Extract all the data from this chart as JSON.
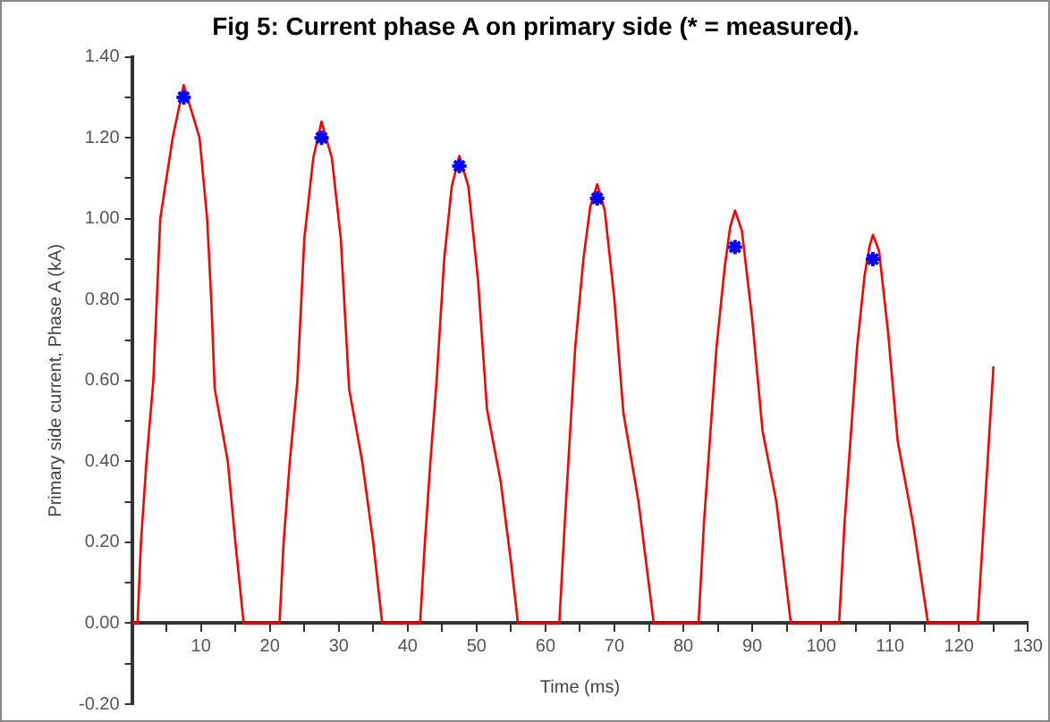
{
  "chart_data": {
    "type": "line",
    "title": "Fig 5: Current phase A on primary side (* = measured).",
    "xlabel": "Time (ms)",
    "ylabel": "Primary side current, Phase A (kA)",
    "xlim": [
      0,
      130
    ],
    "ylim": [
      -0.2,
      1.4
    ],
    "xticks": [
      {
        "value": 5,
        "label": null
      },
      10,
      {
        "value": 15,
        "label": null
      },
      20,
      {
        "value": 25,
        "label": null
      },
      30,
      {
        "value": 35,
        "label": null
      },
      40,
      {
        "value": 45,
        "label": null
      },
      50,
      {
        "value": 55,
        "label": null
      },
      60,
      {
        "value": 65,
        "label": null
      },
      70,
      {
        "value": 75,
        "label": null
      },
      80,
      {
        "value": 85,
        "label": null
      },
      90,
      {
        "value": 95,
        "label": null
      },
      100,
      {
        "value": 105,
        "label": null
      },
      110,
      {
        "value": 115,
        "label": null
      },
      120,
      {
        "value": 125,
        "label": null
      },
      130
    ],
    "yticks": [
      {
        "value": -0.2,
        "label": "-0.20"
      },
      {
        "value": -0.1,
        "label": null
      },
      {
        "value": 0,
        "label": "0.00"
      },
      {
        "value": 0.1,
        "label": null
      },
      {
        "value": 0.2,
        "label": "0.20"
      },
      {
        "value": 0.3,
        "label": null
      },
      {
        "value": 0.4,
        "label": "0.40"
      },
      {
        "value": 0.5,
        "label": null
      },
      {
        "value": 0.6,
        "label": "0.60"
      },
      {
        "value": 0.7,
        "label": null
      },
      {
        "value": 0.8,
        "label": "0.80"
      },
      {
        "value": 0.9,
        "label": null
      },
      {
        "value": 1.0,
        "label": "1.00"
      },
      {
        "value": 1.1,
        "label": null
      },
      {
        "value": 1.2,
        "label": "1.20"
      },
      {
        "value": 1.3,
        "label": null
      },
      {
        "value": 1.4,
        "label": "1.40"
      }
    ],
    "grid": false,
    "legend": false,
    "series": [
      {
        "color": "#ff0000",
        "marker": "none",
        "line_style": "solid",
        "x": [
          0,
          0.8,
          1.3,
          2.1,
          3.1,
          4.1,
          5.9,
          7.5,
          9.8,
          10.9,
          11.5,
          12.0,
          13.9,
          15,
          16.2,
          21.4,
          22.0,
          22.9,
          24,
          25,
          26.3,
          27.5,
          29,
          30.3,
          31.5,
          33.4,
          35,
          36.3,
          41.8,
          42.5,
          43.3,
          44.2,
          45.3,
          46.4,
          47.5,
          48.8,
          50.2,
          51.5,
          53.5,
          55,
          56,
          62,
          62.8,
          64.3,
          65.5,
          66.5,
          67.5,
          68.6,
          70,
          71.3,
          73.5,
          75.7,
          82.2,
          83,
          84.8,
          86,
          86.8,
          87.5,
          88.5,
          90,
          91.5,
          93.5,
          95.6,
          102.6,
          103.4,
          105.2,
          106.3,
          107,
          107.5,
          108.4,
          109.7,
          111.1,
          113.3,
          115.5,
          122.7,
          125
        ],
        "values": [
          0,
          0,
          0.2,
          0.4,
          0.6,
          1.0,
          1.2,
          1.33,
          1.2,
          1.0,
          0.8,
          0.58,
          0.4,
          0.2,
          0,
          0,
          0.2,
          0.4,
          0.6,
          0.95,
          1.15,
          1.24,
          1.15,
          0.95,
          0.58,
          0.4,
          0.2,
          0,
          0,
          0.2,
          0.4,
          0.6,
          0.9,
          1.08,
          1.155,
          1.08,
          0.85,
          0.53,
          0.35,
          0.15,
          0,
          0,
          0.25,
          0.68,
          0.9,
          1.03,
          1.085,
          1.02,
          0.8,
          0.52,
          0.3,
          0,
          0,
          0.25,
          0.68,
          0.88,
          0.98,
          1.02,
          0.97,
          0.75,
          0.475,
          0.3,
          0,
          0,
          0.25,
          0.68,
          0.86,
          0.93,
          0.96,
          0.92,
          0.72,
          0.45,
          0.25,
          0,
          0,
          0.635
        ]
      },
      {
        "type": "scatter",
        "color": "#0000ff",
        "marker": "cross",
        "x": [
          7.5,
          27.5,
          47.5,
          67.5,
          87.5,
          107.5
        ],
        "values": [
          1.3,
          1.2,
          1.13,
          1.05,
          0.93,
          0.9
        ]
      }
    ]
  }
}
